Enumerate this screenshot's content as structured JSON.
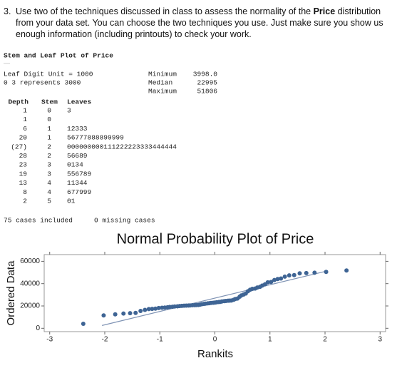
{
  "question": {
    "number": "3.",
    "text_before": "Use two of the techniques discussed in class to assess the normality of the",
    "bold": "Price",
    "text_after": "distribution from your data set. You can choose the two techniques you use. Just make sure you show us enough information (including printouts) to check your work."
  },
  "stem_leaf": {
    "title": "Stem and Leaf Plot of Price",
    "leaf_unit": "Leaf Digit Unit = 1000",
    "example": "0 3 represents 3000",
    "stats": [
      {
        "label": "Minimum",
        "value": "3998.0"
      },
      {
        "label": "Median",
        "value": "22995"
      },
      {
        "label": "Maximum",
        "value": "51806"
      }
    ],
    "headers": [
      "Depth",
      "Stem",
      "Leaves"
    ],
    "rows": [
      [
        "1",
        "0",
        "3"
      ],
      [
        "1",
        "0"
      ],
      [
        "6",
        "1",
        "12333"
      ],
      [
        "20",
        "1",
        "56777888899999"
      ],
      [
        "(27)",
        "2",
        "000000000111222223333444444"
      ],
      [
        "28",
        "2",
        "56689"
      ],
      [
        "23",
        "3",
        "0134"
      ],
      [
        "19",
        "3",
        "556789"
      ],
      [
        "13",
        "4",
        "11344"
      ],
      [
        "8",
        "4",
        "677999"
      ],
      [
        "2",
        "5",
        "01"
      ]
    ],
    "cases_included": "75 cases included",
    "missing": "0 missing cases"
  },
  "chart_data": {
    "type": "scatter",
    "title": "Normal Probability Plot of Price",
    "x_label": "Rankits",
    "y_label": "Ordered Data",
    "color": "#3e6494",
    "x": [
      -2.39,
      -2.02,
      -1.81,
      -1.66,
      -1.54,
      -1.44,
      -1.35,
      -1.27,
      -1.2,
      -1.14,
      -1.08,
      -1.02,
      -0.96,
      -0.91,
      -0.86,
      -0.82,
      -0.77,
      -0.73,
      -0.68,
      -0.64,
      -0.6,
      -0.56,
      -0.52,
      -0.48,
      -0.45,
      -0.41,
      -0.37,
      -0.34,
      -0.3,
      -0.27,
      -0.24,
      -0.2,
      -0.17,
      -0.13,
      -0.1,
      -0.07,
      -0.03,
      0,
      0.03,
      0.07,
      0.1,
      0.13,
      0.17,
      0.2,
      0.24,
      0.27,
      0.3,
      0.34,
      0.37,
      0.41,
      0.45,
      0.48,
      0.52,
      0.56,
      0.6,
      0.64,
      0.68,
      0.73,
      0.77,
      0.82,
      0.86,
      0.91,
      0.96,
      1.02,
      1.08,
      1.14,
      1.2,
      1.27,
      1.35,
      1.44,
      1.54,
      1.66,
      1.81,
      2.02,
      2.39
    ],
    "values": [
      3998,
      11500,
      12500,
      13200,
      13500,
      13800,
      15500,
      16500,
      17200,
      17400,
      17600,
      18200,
      18400,
      18600,
      18800,
      19100,
      19300,
      19500,
      19700,
      19900,
      20100,
      20200,
      20300,
      20400,
      20500,
      20600,
      20700,
      20800,
      20900,
      21200,
      21500,
      21800,
      22100,
      22300,
      22500,
      22700,
      22900,
      22995,
      23300,
      23500,
      23700,
      24100,
      24300,
      24500,
      24700,
      24800,
      24900,
      25500,
      26200,
      26600,
      28300,
      29400,
      30200,
      31100,
      33200,
      34500,
      35300,
      35600,
      36500,
      37200,
      38300,
      39400,
      41200,
      41500,
      43200,
      44100,
      44600,
      46300,
      47400,
      47600,
      49200,
      49500,
      49800,
      50500,
      51806
    ],
    "line": {
      "x": [
        -2.05,
        2.05
      ],
      "values": [
        2500,
        51500
      ],
      "color": "#7f93b4"
    },
    "xlim": [
      -3.1,
      3.1
    ],
    "ylim": [
      -3000,
      66000
    ],
    "xticks": [
      -3,
      -2,
      -1,
      0,
      1,
      2,
      3
    ],
    "yticks": [
      0,
      20000,
      40000,
      60000
    ]
  }
}
